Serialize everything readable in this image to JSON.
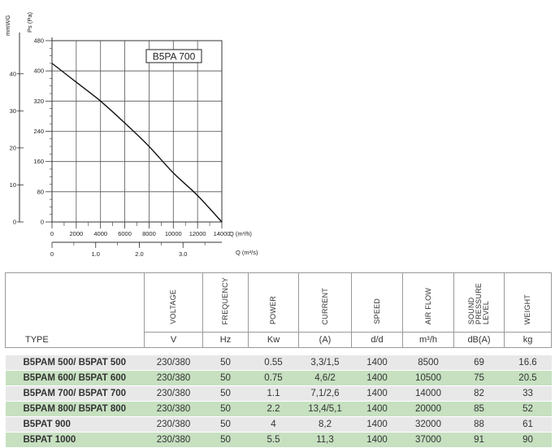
{
  "chart_data": {
    "type": "line",
    "title": "B5PA 700",
    "axes": {
      "left_outer_label": "mmWG",
      "left_outer_ticks": [
        "0",
        "10",
        "20",
        "30",
        "40"
      ],
      "left_label": "Ps (Pa)",
      "left_ticks": [
        "0",
        "80",
        "160",
        "240",
        "320",
        "400",
        "480"
      ],
      "left_range": [
        0,
        480
      ],
      "bottom_label": "Q (m³/h)",
      "bottom_ticks": [
        "0",
        "2000",
        "4000",
        "6000",
        "8000",
        "10000",
        "12000",
        "14000"
      ],
      "bottom_range": [
        0,
        14000
      ],
      "bottom2_label": "Q (m³/s)",
      "bottom2_ticks": [
        "0",
        "1.0",
        "2.0",
        "3.0"
      ]
    },
    "grid": true,
    "series": [
      {
        "x": [
          0,
          2000,
          4000,
          6000,
          8000,
          10000,
          12000,
          14000
        ],
        "y": [
          420,
          370,
          320,
          262,
          200,
          130,
          70,
          0
        ]
      }
    ]
  },
  "table": {
    "type_label": "TYPE",
    "columns": [
      {
        "header": "VOLTAGE",
        "unit": "V"
      },
      {
        "header": "FREQUENCY",
        "unit": "Hz"
      },
      {
        "header": "POWER",
        "unit": "Kw"
      },
      {
        "header": "CURRENT",
        "unit": "(A)"
      },
      {
        "header": "SPEED",
        "unit": "d/d"
      },
      {
        "header": "AIR FLOW",
        "unit": "m³/h"
      },
      {
        "header": "SOUND\nPRESSURE\nLEVEL",
        "unit": "dB(A)"
      },
      {
        "header": "WEIGHT",
        "unit": "kg"
      }
    ],
    "rows": [
      {
        "type": "B5PAM 500/ B5PAT 500",
        "values": [
          "230/380",
          "50",
          "0.55",
          "3,3/1,5",
          "1400",
          "8500",
          "69",
          "16.6"
        ]
      },
      {
        "type": "B5PAM 600/ B5PAT 600",
        "values": [
          "230/380",
          "50",
          "0.75",
          "4,6/2",
          "1400",
          "10500",
          "75",
          "20.5"
        ]
      },
      {
        "type": "B5PAM 700/ B5PAT 700",
        "values": [
          "230/380",
          "50",
          "1.1",
          "7,1/2,6",
          "1400",
          "14000",
          "82",
          "33"
        ]
      },
      {
        "type": "B5PAM 800/ B5PAT 800",
        "values": [
          "230/380",
          "50",
          "2.2",
          "13,4/5,1",
          "1400",
          "20000",
          "85",
          "52"
        ]
      },
      {
        "type": "B5PAT 900",
        "values": [
          "230/380",
          "50",
          "4",
          "8,2",
          "1400",
          "32000",
          "88",
          "61"
        ]
      },
      {
        "type": "B5PAT 1000",
        "values": [
          "230/380",
          "50",
          "5.5",
          "11,3",
          "1400",
          "37000",
          "91",
          "90"
        ]
      }
    ]
  }
}
